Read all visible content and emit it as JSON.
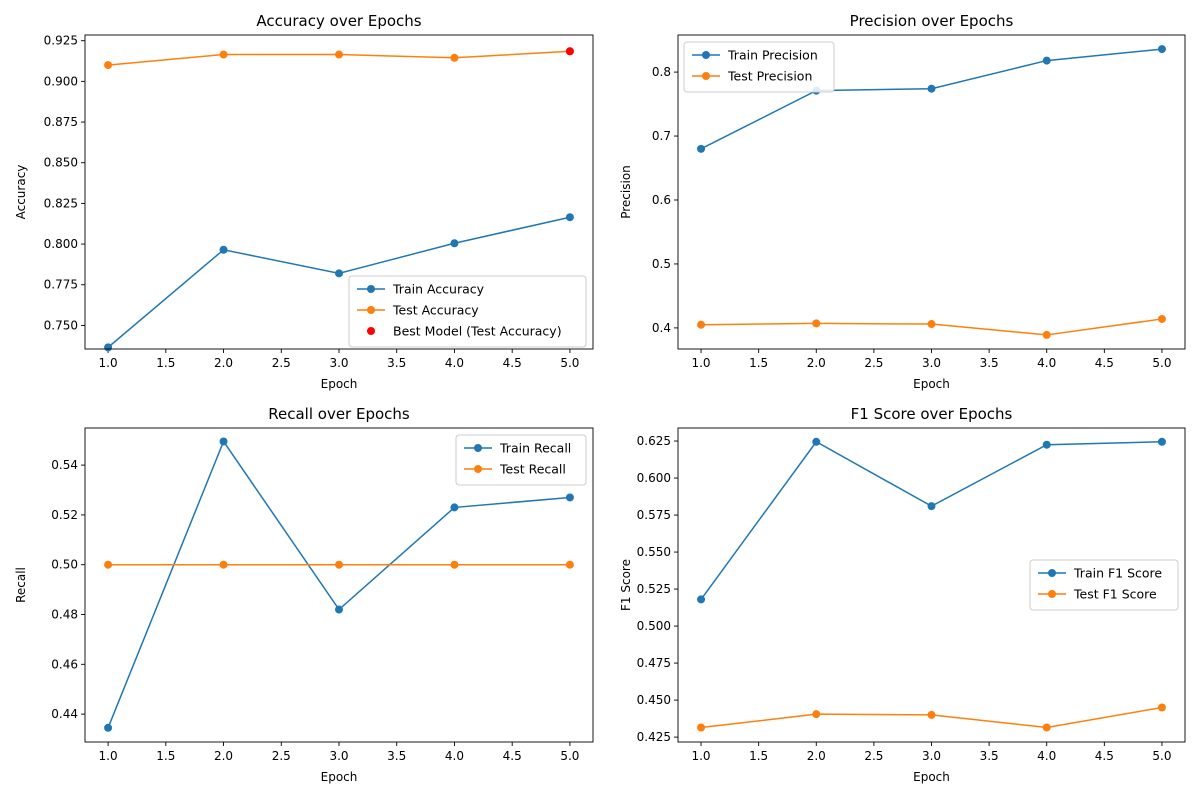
{
  "chart_data": [
    {
      "type": "line",
      "title": "Accuracy over Epochs",
      "xlabel": "Epoch",
      "ylabel": "Accuracy",
      "x": [
        1,
        2,
        3,
        4,
        5
      ],
      "xlim": [
        0.8,
        5.2
      ],
      "ylim": [
        0.7355,
        0.9285
      ],
      "xticks": [
        "1.0",
        "1.5",
        "2.0",
        "2.5",
        "3.0",
        "3.5",
        "4.0",
        "4.5",
        "5.0"
      ],
      "yticks": [
        "0.750",
        "0.775",
        "0.800",
        "0.825",
        "0.850",
        "0.875",
        "0.900",
        "0.925"
      ],
      "grid": false,
      "legend_position": "lower right",
      "series": [
        {
          "name": "Train Accuracy",
          "color": "#1f77b4",
          "values": [
            0.7365,
            0.7965,
            0.782,
            0.8005,
            0.8165
          ]
        },
        {
          "name": "Test Accuracy",
          "color": "#ff7f0e",
          "values": [
            0.91,
            0.9165,
            0.9165,
            0.9145,
            0.9185
          ]
        }
      ],
      "highlight": {
        "name": "Best Model (Test Accuracy)",
        "color": "#ff0000",
        "x": 5,
        "y": 0.9185
      }
    },
    {
      "type": "line",
      "title": "Precision over Epochs",
      "xlabel": "Epoch",
      "ylabel": "Precision",
      "x": [
        1,
        2,
        3,
        4,
        5
      ],
      "xlim": [
        0.8,
        5.2
      ],
      "ylim": [
        0.367,
        0.858
      ],
      "xticks": [
        "1.0",
        "1.5",
        "2.0",
        "2.5",
        "3.0",
        "3.5",
        "4.0",
        "4.5",
        "5.0"
      ],
      "yticks": [
        "0.4",
        "0.5",
        "0.6",
        "0.7",
        "0.8"
      ],
      "grid": false,
      "legend_position": "upper left",
      "series": [
        {
          "name": "Train Precision",
          "color": "#1f77b4",
          "values": [
            0.68,
            0.771,
            0.774,
            0.818,
            0.836
          ]
        },
        {
          "name": "Test Precision",
          "color": "#ff7f0e",
          "values": [
            0.405,
            0.407,
            0.406,
            0.389,
            0.414
          ]
        }
      ]
    },
    {
      "type": "line",
      "title": "Recall over Epochs",
      "xlabel": "Epoch",
      "ylabel": "Recall",
      "x": [
        1,
        2,
        3,
        4,
        5
      ],
      "xlim": [
        0.8,
        5.2
      ],
      "ylim": [
        0.4288,
        0.5549
      ],
      "xticks": [
        "1.0",
        "1.5",
        "2.0",
        "2.5",
        "3.0",
        "3.5",
        "4.0",
        "4.5",
        "5.0"
      ],
      "yticks": [
        "0.44",
        "0.46",
        "0.48",
        "0.50",
        "0.52",
        "0.54"
      ],
      "grid": false,
      "legend_position": "upper right",
      "series": [
        {
          "name": "Train Recall",
          "color": "#1f77b4",
          "values": [
            0.4345,
            0.5495,
            0.482,
            0.523,
            0.527
          ]
        },
        {
          "name": "Test Recall",
          "color": "#ff7f0e",
          "values": [
            0.5,
            0.5,
            0.5,
            0.5,
            0.5
          ]
        }
      ]
    },
    {
      "type": "line",
      "title": "F1 Score over Epochs",
      "xlabel": "Epoch",
      "ylabel": "F1 Score",
      "x": [
        1,
        2,
        3,
        4,
        5
      ],
      "xlim": [
        0.8,
        5.2
      ],
      "ylim": [
        0.4217,
        0.6338
      ],
      "xticks": [
        "1.0",
        "1.5",
        "2.0",
        "2.5",
        "3.0",
        "3.5",
        "4.0",
        "4.5",
        "5.0"
      ],
      "yticks": [
        "0.425",
        "0.450",
        "0.475",
        "0.500",
        "0.525",
        "0.550",
        "0.575",
        "0.600",
        "0.625"
      ],
      "grid": false,
      "legend_position": "center right",
      "series": [
        {
          "name": "Train F1 Score",
          "color": "#1f77b4",
          "values": [
            0.518,
            0.6245,
            0.581,
            0.6225,
            0.6245
          ]
        },
        {
          "name": "Test F1 Score",
          "color": "#ff7f0e",
          "values": [
            0.4315,
            0.4405,
            0.44,
            0.4315,
            0.445
          ]
        }
      ]
    }
  ]
}
